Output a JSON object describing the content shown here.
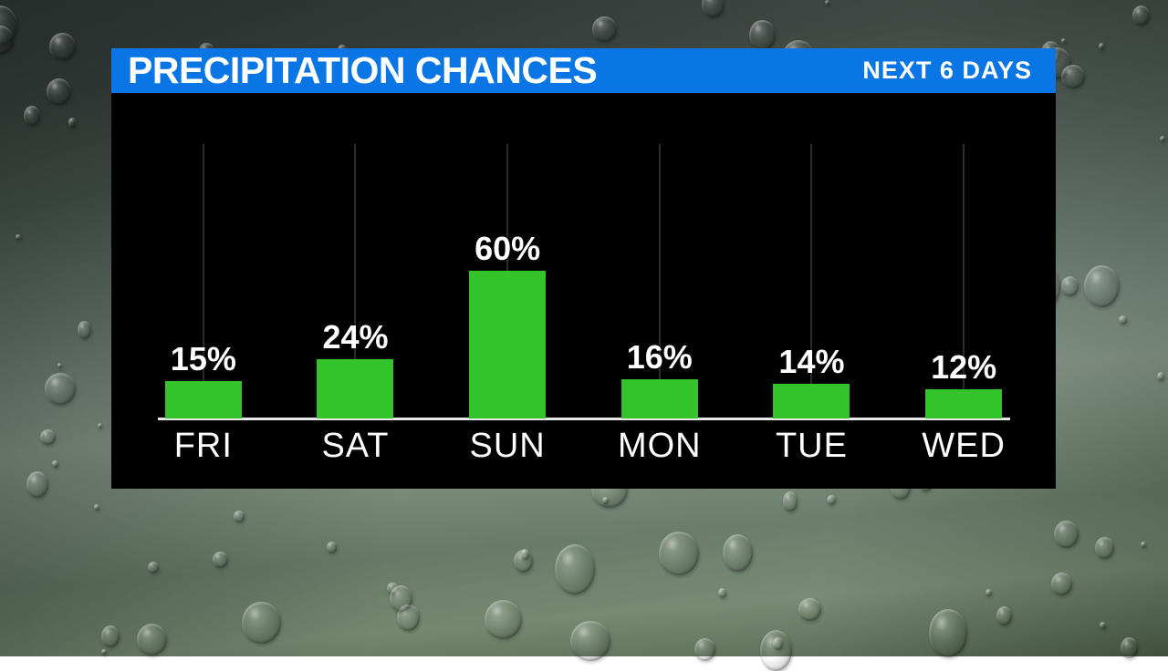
{
  "header": {
    "title": "PRECIPITATION CHANCES",
    "range_label": "NEXT 6 DAYS"
  },
  "chart_data": {
    "type": "bar",
    "title": "PRECIPITATION CHANCES",
    "subtitle": "NEXT 6 DAYS",
    "categories": [
      "FRI",
      "SAT",
      "SUN",
      "MON",
      "TUE",
      "WED"
    ],
    "values": [
      15,
      24,
      60,
      16,
      14,
      12
    ],
    "value_suffix": "%",
    "xlabel": "",
    "ylabel": "",
    "ylim": [
      0,
      100
    ],
    "grid": "vertical-tick-per-category",
    "legend": "none"
  },
  "colors": {
    "header_bg": "#0a75e4",
    "header_text": "#ffffff",
    "panel_bg": "#000000",
    "bar": "#33c32b",
    "gridline": "#2d2d2d",
    "baseline": "#e9e9e9",
    "label_text": "#ffffff"
  }
}
